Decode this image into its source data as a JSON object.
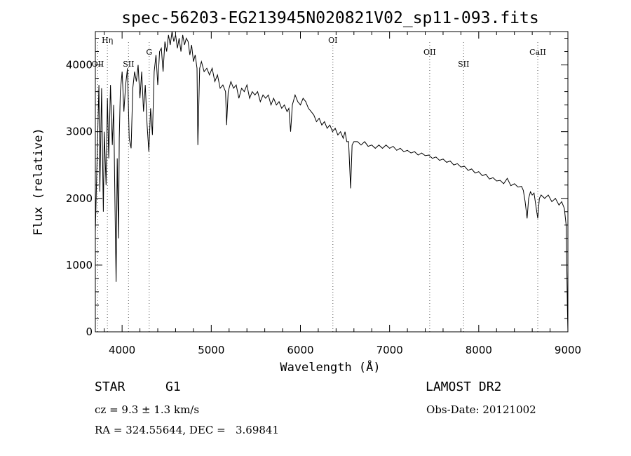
{
  "chart_data": {
    "type": "line",
    "title": "spec-56203-EG213945N020821V02_sp11-093.fits",
    "xlabel": "Wavelength (Å)",
    "ylabel": "Flux (relative)",
    "xlim": [
      3700,
      9000
    ],
    "ylim": [
      0,
      4500
    ],
    "x_ticks": [
      4000,
      5000,
      6000,
      7000,
      8000,
      9000
    ],
    "y_ticks": [
      0,
      1000,
      2000,
      3000,
      4000
    ],
    "grid": false,
    "line_markers": [
      {
        "label": "Hη",
        "x": 3835
      },
      {
        "label": "OII",
        "x": 3727
      },
      {
        "label": "SII",
        "x": 4072
      },
      {
        "label": "G",
        "x": 4304
      },
      {
        "label": "OI",
        "x": 6364
      },
      {
        "label": "OII",
        "x": 7450
      },
      {
        "label": "SII",
        "x": 7830
      },
      {
        "label": "CaII",
        "x": 8662
      }
    ],
    "series": [
      {
        "values": [
          [
            3700,
            1500
          ],
          [
            3720,
            2600
          ],
          [
            3740,
            3700
          ],
          [
            3750,
            2100
          ],
          [
            3770,
            3650
          ],
          [
            3790,
            1800
          ],
          [
            3800,
            3000
          ],
          [
            3820,
            2200
          ],
          [
            3835,
            3500
          ],
          [
            3850,
            2600
          ],
          [
            3870,
            3700
          ],
          [
            3890,
            2800
          ],
          [
            3905,
            3400
          ],
          [
            3920,
            1900
          ],
          [
            3933,
            750
          ],
          [
            3945,
            2600
          ],
          [
            3960,
            1400
          ],
          [
            3968,
            2900
          ],
          [
            3980,
            3600
          ],
          [
            4000,
            3900
          ],
          [
            4020,
            3300
          ],
          [
            4040,
            3700
          ],
          [
            4060,
            3950
          ],
          [
            4080,
            2900
          ],
          [
            4101,
            2750
          ],
          [
            4120,
            3650
          ],
          [
            4140,
            3900
          ],
          [
            4160,
            3750
          ],
          [
            4180,
            4000
          ],
          [
            4200,
            3500
          ],
          [
            4220,
            3900
          ],
          [
            4240,
            3300
          ],
          [
            4260,
            3700
          ],
          [
            4280,
            3100
          ],
          [
            4300,
            2700
          ],
          [
            4320,
            3350
          ],
          [
            4340,
            2950
          ],
          [
            4360,
            3900
          ],
          [
            4380,
            4150
          ],
          [
            4400,
            3700
          ],
          [
            4420,
            4200
          ],
          [
            4440,
            4250
          ],
          [
            4460,
            3900
          ],
          [
            4480,
            4350
          ],
          [
            4500,
            4200
          ],
          [
            4520,
            4450
          ],
          [
            4540,
            4300
          ],
          [
            4560,
            4500
          ],
          [
            4580,
            4350
          ],
          [
            4600,
            4450
          ],
          [
            4620,
            4250
          ],
          [
            4640,
            4400
          ],
          [
            4660,
            4200
          ],
          [
            4680,
            4450
          ],
          [
            4700,
            4300
          ],
          [
            4720,
            4400
          ],
          [
            4740,
            4350
          ],
          [
            4760,
            4150
          ],
          [
            4780,
            4300
          ],
          [
            4800,
            4050
          ],
          [
            4820,
            4150
          ],
          [
            4840,
            3950
          ],
          [
            4850,
            2800
          ],
          [
            4870,
            3950
          ],
          [
            4890,
            4050
          ],
          [
            4920,
            3900
          ],
          [
            4950,
            3950
          ],
          [
            4980,
            3850
          ],
          [
            5010,
            3950
          ],
          [
            5040,
            3750
          ],
          [
            5070,
            3850
          ],
          [
            5100,
            3650
          ],
          [
            5130,
            3700
          ],
          [
            5160,
            3600
          ],
          [
            5172,
            3100
          ],
          [
            5190,
            3600
          ],
          [
            5220,
            3750
          ],
          [
            5250,
            3650
          ],
          [
            5280,
            3700
          ],
          [
            5310,
            3500
          ],
          [
            5340,
            3650
          ],
          [
            5370,
            3600
          ],
          [
            5400,
            3700
          ],
          [
            5430,
            3500
          ],
          [
            5460,
            3600
          ],
          [
            5490,
            3550
          ],
          [
            5520,
            3600
          ],
          [
            5550,
            3450
          ],
          [
            5580,
            3550
          ],
          [
            5610,
            3500
          ],
          [
            5640,
            3550
          ],
          [
            5670,
            3400
          ],
          [
            5700,
            3500
          ],
          [
            5730,
            3400
          ],
          [
            5760,
            3450
          ],
          [
            5790,
            3350
          ],
          [
            5820,
            3400
          ],
          [
            5850,
            3300
          ],
          [
            5870,
            3350
          ],
          [
            5890,
            3000
          ],
          [
            5910,
            3400
          ],
          [
            5940,
            3550
          ],
          [
            5970,
            3450
          ],
          [
            6000,
            3400
          ],
          [
            6030,
            3500
          ],
          [
            6060,
            3450
          ],
          [
            6090,
            3350
          ],
          [
            6120,
            3300
          ],
          [
            6150,
            3250
          ],
          [
            6180,
            3150
          ],
          [
            6210,
            3200
          ],
          [
            6240,
            3100
          ],
          [
            6270,
            3150
          ],
          [
            6300,
            3050
          ],
          [
            6330,
            3100
          ],
          [
            6360,
            3000
          ],
          [
            6390,
            3050
          ],
          [
            6420,
            2950
          ],
          [
            6450,
            3000
          ],
          [
            6480,
            2900
          ],
          [
            6500,
            3000
          ],
          [
            6520,
            2850
          ],
          [
            6540,
            2850
          ],
          [
            6563,
            2150
          ],
          [
            6580,
            2800
          ],
          [
            6600,
            2850
          ],
          [
            6640,
            2850
          ],
          [
            6680,
            2800
          ],
          [
            6720,
            2850
          ],
          [
            6760,
            2780
          ],
          [
            6800,
            2800
          ],
          [
            6840,
            2750
          ],
          [
            6880,
            2800
          ],
          [
            6920,
            2750
          ],
          [
            6960,
            2800
          ],
          [
            7000,
            2750
          ],
          [
            7040,
            2780
          ],
          [
            7080,
            2720
          ],
          [
            7120,
            2750
          ],
          [
            7160,
            2700
          ],
          [
            7200,
            2720
          ],
          [
            7240,
            2680
          ],
          [
            7280,
            2700
          ],
          [
            7320,
            2650
          ],
          [
            7360,
            2680
          ],
          [
            7400,
            2640
          ],
          [
            7440,
            2650
          ],
          [
            7480,
            2600
          ],
          [
            7520,
            2620
          ],
          [
            7560,
            2570
          ],
          [
            7600,
            2590
          ],
          [
            7640,
            2540
          ],
          [
            7680,
            2560
          ],
          [
            7720,
            2500
          ],
          [
            7760,
            2520
          ],
          [
            7800,
            2470
          ],
          [
            7840,
            2480
          ],
          [
            7880,
            2420
          ],
          [
            7920,
            2440
          ],
          [
            7960,
            2380
          ],
          [
            8000,
            2400
          ],
          [
            8040,
            2340
          ],
          [
            8080,
            2360
          ],
          [
            8120,
            2290
          ],
          [
            8160,
            2310
          ],
          [
            8200,
            2260
          ],
          [
            8240,
            2270
          ],
          [
            8280,
            2220
          ],
          [
            8320,
            2300
          ],
          [
            8360,
            2190
          ],
          [
            8400,
            2220
          ],
          [
            8440,
            2170
          ],
          [
            8480,
            2180
          ],
          [
            8500,
            2120
          ],
          [
            8520,
            1950
          ],
          [
            8542,
            1700
          ],
          [
            8560,
            2000
          ],
          [
            8580,
            2100
          ],
          [
            8600,
            2050
          ],
          [
            8620,
            2080
          ],
          [
            8640,
            1900
          ],
          [
            8662,
            1700
          ],
          [
            8680,
            2000
          ],
          [
            8700,
            2050
          ],
          [
            8740,
            2000
          ],
          [
            8780,
            2050
          ],
          [
            8820,
            1950
          ],
          [
            8860,
            2000
          ],
          [
            8900,
            1900
          ],
          [
            8930,
            1950
          ],
          [
            8960,
            1850
          ],
          [
            8980,
            1600
          ],
          [
            8995,
            300
          ],
          [
            9000,
            0
          ]
        ]
      }
    ]
  },
  "info": {
    "object_class": "STAR",
    "subclass": "G1",
    "survey": "LAMOST DR2",
    "cz": "cz = 9.3 ± 1.3 km/s",
    "obs_date": "Obs-Date: 20121002",
    "coords": "RA = 324.55644, DEC =   3.69841"
  }
}
